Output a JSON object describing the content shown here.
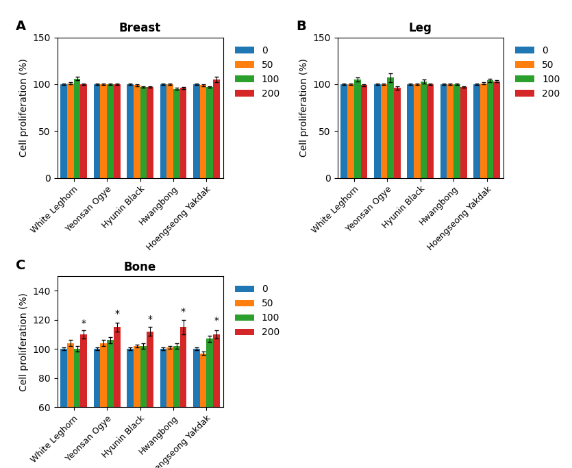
{
  "chart_data": [
    {
      "type": "bar",
      "title": "Breast",
      "ylabel": "Cell proliferation (%)",
      "categories": [
        "White Leghorn",
        "Yeonsan Ogye",
        "Hyunin Black",
        "Hwangbong",
        "Hoengseong Yakdak"
      ],
      "series": [
        {
          "name": "0",
          "values": [
            100,
            100,
            100,
            100,
            100
          ],
          "errors": [
            1,
            1,
            1,
            1,
            1
          ]
        },
        {
          "name": "50",
          "values": [
            101,
            100,
            99,
            100,
            99
          ],
          "errors": [
            1,
            1,
            1,
            1,
            1
          ]
        },
        {
          "name": "100",
          "values": [
            106,
            100,
            97,
            95,
            97
          ],
          "errors": [
            2,
            1,
            1,
            1,
            1
          ]
        },
        {
          "name": "200",
          "values": [
            100,
            100,
            97,
            96,
            105
          ],
          "errors": [
            1,
            1,
            1,
            1,
            3
          ]
        }
      ],
      "ylim": [
        0,
        150
      ],
      "yticks": [
        0,
        50,
        100,
        150
      ],
      "legend": "upper left",
      "annotations": [
        {
          "text": "A"
        }
      ]
    },
    {
      "type": "bar",
      "title": "Leg",
      "ylabel": "Cell proliferation (%)",
      "categories": [
        "White Leghorn",
        "Yeonsan Ogye",
        "Hyunin Black",
        "Hwangbong",
        "Hoengseong Yakdak"
      ],
      "series": [
        {
          "name": "0",
          "values": [
            100,
            100,
            100,
            100,
            100
          ],
          "errors": [
            1,
            1,
            1,
            1,
            1
          ]
        },
        {
          "name": "50",
          "values": [
            100,
            100,
            100,
            100,
            101
          ],
          "errors": [
            1,
            1,
            1,
            1,
            1
          ]
        },
        {
          "name": "100",
          "values": [
            105,
            107,
            103,
            100,
            104
          ],
          "errors": [
            2,
            5,
            2,
            1,
            2
          ]
        },
        {
          "name": "200",
          "values": [
            99,
            96,
            100,
            97,
            103
          ],
          "errors": [
            1,
            2,
            1,
            1,
            1
          ]
        }
      ],
      "ylim": [
        0,
        150
      ],
      "yticks": [
        0,
        50,
        100,
        150
      ],
      "legend": "upper left",
      "annotations": [
        {
          "text": "B"
        }
      ]
    },
    {
      "type": "bar",
      "title": "Bone",
      "ylabel": "Cell proliferation (%)",
      "categories": [
        "White Leghorn",
        "Yeonsan Ogye",
        "Hyunin Black",
        "Hwangbong",
        "Hoengseong Yakdak"
      ],
      "series": [
        {
          "name": "0",
          "values": [
            100,
            100,
            100,
            100,
            100
          ],
          "errors": [
            1,
            1,
            1,
            1,
            1
          ]
        },
        {
          "name": "50",
          "values": [
            104,
            104,
            102,
            101,
            97
          ],
          "errors": [
            2,
            2,
            1,
            1,
            1
          ]
        },
        {
          "name": "100",
          "values": [
            100,
            106,
            102,
            102,
            107
          ],
          "errors": [
            2,
            2,
            2,
            2,
            2
          ]
        },
        {
          "name": "200",
          "values": [
            110,
            115,
            112,
            115,
            110
          ],
          "errors": [
            3,
            3,
            3,
            5,
            3
          ]
        }
      ],
      "ylim": [
        60,
        150
      ],
      "yticks": [
        60,
        80,
        100,
        120,
        140
      ],
      "legend": "upper left",
      "annotations": [
        {
          "text": "C"
        },
        {
          "text": "*",
          "category": "White Leghorn",
          "series": "200",
          "y": 114
        },
        {
          "text": "*",
          "category": "Yeonsan Ogye",
          "series": "200",
          "y": 121
        },
        {
          "text": "*",
          "category": "Hyunin Black",
          "series": "200",
          "y": 117
        },
        {
          "text": "*",
          "category": "Hwangbong",
          "series": "200",
          "y": 122
        },
        {
          "text": "*",
          "category": "Hoengseong Yakdak",
          "series": "200",
          "y": 116
        }
      ]
    }
  ]
}
